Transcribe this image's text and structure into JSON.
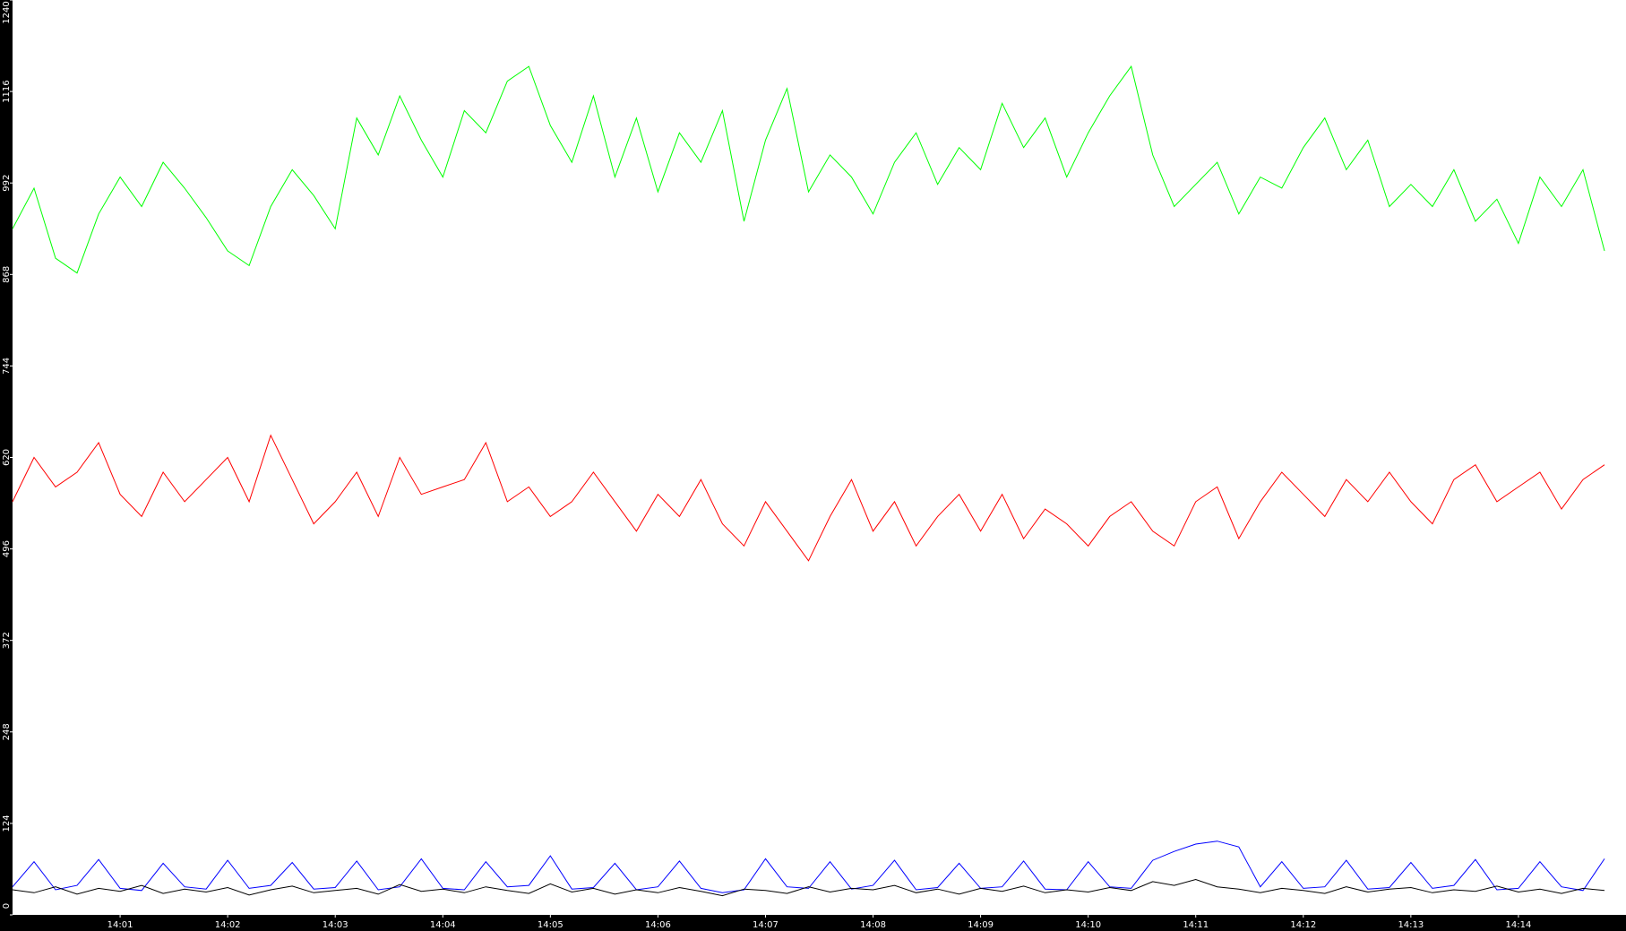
{
  "chart_data": {
    "type": "line",
    "x": [
      840,
      840.2,
      840.4,
      840.6,
      840.8,
      841,
      841.2,
      841.4,
      841.6,
      841.8,
      842,
      842.2,
      842.4,
      842.6,
      842.8,
      843,
      843.2,
      843.4,
      843.6,
      843.8,
      844,
      844.2,
      844.4,
      844.6,
      844.8,
      845,
      845.2,
      845.4,
      845.6,
      845.8,
      846,
      846.2,
      846.4,
      846.6,
      846.8,
      847,
      847.2,
      847.4,
      847.6,
      847.8,
      848,
      848.2,
      848.4,
      848.6,
      848.8,
      849,
      849.2,
      849.4,
      849.6,
      849.8,
      850,
      850.2,
      850.4,
      850.6,
      850.8,
      851,
      851.2,
      851.4,
      851.6,
      851.8,
      852,
      852.2,
      852.4,
      852.6,
      852.8,
      853,
      853.2,
      853.4,
      853.6,
      853.8,
      854,
      854.2,
      854.4,
      854.6,
      854.8
    ],
    "series": [
      {
        "color": "#00ff00",
        "values": [
          930,
          985,
          890,
          870,
          950,
          1000,
          960,
          1020,
          985,
          945,
          900,
          880,
          960,
          1010,
          975,
          930,
          1080,
          1030,
          1110,
          1050,
          1000,
          1090,
          1060,
          1130,
          1150,
          1070,
          1020,
          1110,
          1000,
          1080,
          980,
          1060,
          1020,
          1090,
          940,
          1050,
          1120,
          980,
          1030,
          1000,
          950,
          1020,
          1060,
          990,
          1040,
          1010,
          1100,
          1040,
          1080,
          1000,
          1060,
          1110,
          1150,
          1030,
          960,
          990,
          1020,
          950,
          1000,
          985,
          1040,
          1080,
          1010,
          1050,
          960,
          990,
          960,
          1010,
          940,
          970,
          910,
          1000,
          960,
          1010,
          900
        ]
      },
      {
        "color": "#ff0000",
        "values": [
          560,
          620,
          580,
          600,
          640,
          570,
          540,
          600,
          560,
          590,
          620,
          560,
          650,
          590,
          530,
          560,
          600,
          540,
          620,
          570,
          580,
          590,
          640,
          560,
          580,
          540,
          560,
          600,
          560,
          520,
          570,
          540,
          590,
          530,
          500,
          560,
          520,
          480,
          540,
          590,
          520,
          560,
          500,
          540,
          570,
          520,
          570,
          510,
          550,
          530,
          500,
          540,
          560,
          520,
          500,
          560,
          580,
          510,
          560,
          600,
          570,
          540,
          590,
          560,
          600,
          560,
          530,
          590,
          610,
          560,
          580,
          600,
          550,
          590,
          610
        ]
      },
      {
        "color": "#0000ff",
        "values": [
          38,
          72,
          34,
          40,
          75,
          36,
          33,
          70,
          38,
          35,
          74,
          36,
          40,
          71,
          35,
          37,
          73,
          34,
          38,
          76,
          36,
          34,
          72,
          38,
          40,
          80,
          35,
          37,
          70,
          34,
          38,
          73,
          36,
          30,
          34,
          76,
          38,
          36,
          72,
          35,
          40,
          74,
          34,
          37,
          70,
          36,
          38,
          73,
          35,
          34,
          72,
          38,
          36,
          74,
          86,
          96,
          100,
          92,
          38,
          72,
          36,
          38,
          74,
          35,
          37,
          71,
          36,
          40,
          75,
          34,
          36,
          72,
          38,
          33,
          76
        ]
      },
      {
        "color": "#000000",
        "values": [
          34,
          30,
          38,
          28,
          36,
          32,
          40,
          29,
          35,
          31,
          37,
          27,
          34,
          39,
          30,
          33,
          36,
          28,
          41,
          32,
          35,
          30,
          38,
          33,
          29,
          42,
          31,
          36,
          28,
          34,
          30,
          37,
          32,
          26,
          35,
          33,
          29,
          38,
          31,
          36,
          34,
          40,
          30,
          35,
          28,
          36,
          32,
          39,
          30,
          34,
          31,
          37,
          33,
          45,
          40,
          48,
          38,
          35,
          30,
          36,
          33,
          29,
          38,
          31,
          35,
          37,
          30,
          34,
          32,
          39,
          31,
          35,
          29,
          36,
          33
        ]
      }
    ],
    "xlim": [
      840,
      855
    ],
    "xticks": [
      {
        "value": 841,
        "label": "14:01"
      },
      {
        "value": 842,
        "label": "14:02"
      },
      {
        "value": 843,
        "label": "14:03"
      },
      {
        "value": 844,
        "label": "14:04"
      },
      {
        "value": 845,
        "label": "14:05"
      },
      {
        "value": 846,
        "label": "14:06"
      },
      {
        "value": 847,
        "label": "14:07"
      },
      {
        "value": 848,
        "label": "14:08"
      },
      {
        "value": 849,
        "label": "14:09"
      },
      {
        "value": 850,
        "label": "14:10"
      },
      {
        "value": 851,
        "label": "14:11"
      },
      {
        "value": 852,
        "label": "14:12"
      },
      {
        "value": 853,
        "label": "14:13"
      },
      {
        "value": 854,
        "label": "14:14"
      }
    ],
    "ylim": [
      0,
      1240
    ],
    "yticks": [
      0,
      124,
      248,
      372,
      496,
      620,
      744,
      868,
      992,
      1116,
      1240
    ]
  }
}
